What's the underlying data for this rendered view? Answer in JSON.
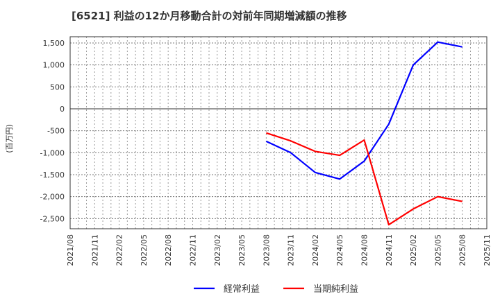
{
  "title": "[6521]  利益の12か月移動合計の対前年同期増減額の推移",
  "chart_data": {
    "type": "line",
    "title": "[6521]  利益の12か月移動合計の対前年同期増減額の推移",
    "xlabel": "",
    "ylabel": "(百万円)",
    "ylim": [
      -2750,
      1650
    ],
    "yticks": [
      1500,
      1000,
      500,
      0,
      -500,
      -1000,
      -1500,
      -2000,
      -2500
    ],
    "ytick_labels": [
      "1,500",
      "1,000",
      "500",
      "0",
      "-500",
      "-1,000",
      "-1,500",
      "-2,000",
      "-2,500"
    ],
    "categories": [
      "2021/08",
      "2021/11",
      "2022/02",
      "2022/05",
      "2022/08",
      "2022/11",
      "2023/02",
      "2023/05",
      "2023/08",
      "2023/11",
      "2024/02",
      "2024/05",
      "2024/08",
      "2024/11",
      "2025/02",
      "2025/05",
      "2025/08",
      "2025/11"
    ],
    "grid": true,
    "legend_position": "bottom",
    "series": [
      {
        "name": "経常利益",
        "color": "#0000ff",
        "values": [
          null,
          null,
          null,
          null,
          null,
          null,
          null,
          null,
          -740,
          -1000,
          -1450,
          -1600,
          -1190,
          -350,
          1000,
          1520,
          1410,
          null
        ]
      },
      {
        "name": "当期純利益",
        "color": "#ff0000",
        "values": [
          null,
          null,
          null,
          null,
          null,
          null,
          null,
          null,
          -550,
          -730,
          -970,
          -1060,
          -710,
          -2640,
          -2280,
          -2000,
          -2110,
          null
        ]
      }
    ]
  }
}
